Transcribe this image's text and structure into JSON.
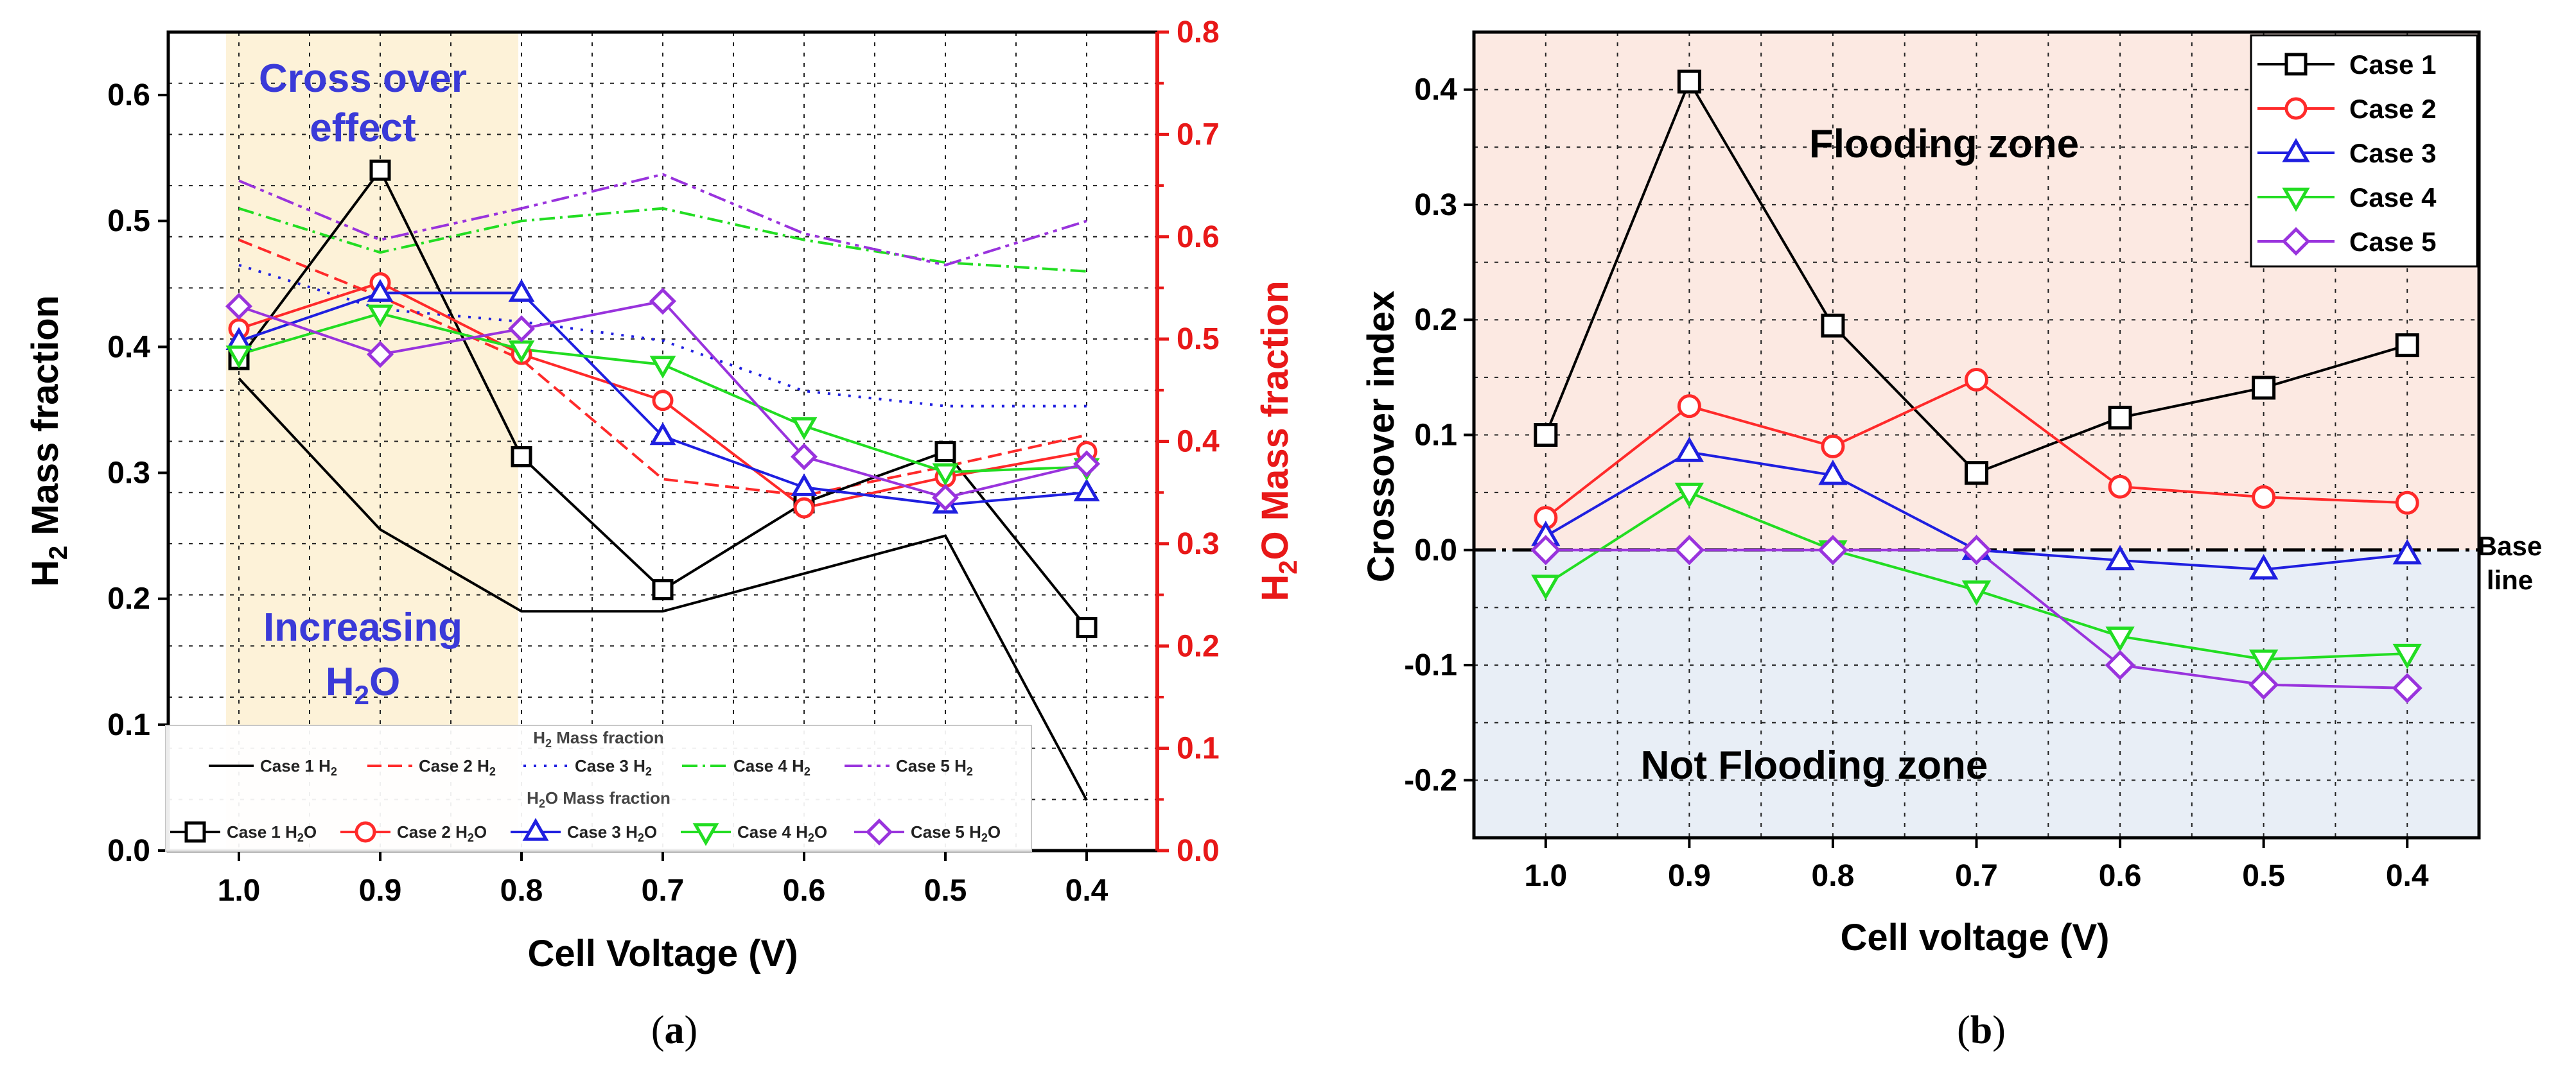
{
  "colors": {
    "case1": "#000000",
    "case2": "#ff2a2a",
    "case3": "#1f1fe0",
    "case4": "#22dd22",
    "case5": "#9933dd",
    "h2o_axis": "#e81818",
    "annotation": "#3a3ad8",
    "cross_band": "#fdf2d8",
    "flood_zone": "#fce9e2",
    "notflood_zone": "#e8eef6"
  },
  "chart_data": [
    {
      "type": "line",
      "panel": "a",
      "caption_open": "(",
      "caption_label": "a",
      "caption_close": ")",
      "xlabel": "Cell Voltage (V)",
      "ylabel_left": {
        "pre": "H",
        "sub": "2",
        "post": " Mass fraction"
      },
      "ylabel_right": {
        "pre": "H",
        "sub": "2",
        "post": "O Mass fraction"
      },
      "x": [
        1.0,
        0.9,
        0.8,
        0.7,
        0.6,
        0.5,
        0.4
      ],
      "xticks": [
        "1.0",
        "0.9",
        "0.8",
        "0.7",
        "0.6",
        "0.5",
        "0.4"
      ],
      "xlim": [
        1.05,
        0.35
      ],
      "ylim_left": [
        0,
        0.65
      ],
      "ylim_right": [
        0,
        0.8
      ],
      "yticks_left": [
        "0.0",
        "0.1",
        "0.2",
        "0.3",
        "0.4",
        "0.5",
        "0.6"
      ],
      "yticks_right": [
        "0.0",
        "0.1",
        "0.2",
        "0.3",
        "0.4",
        "0.5",
        "0.6",
        "0.7",
        "0.8"
      ],
      "annotations": [
        {
          "line1": "Cross over",
          "line2": "effect"
        },
        {
          "line1": "Increasing",
          "line2_pre": "H",
          "line2_sub": "2",
          "line2_post": "O"
        }
      ],
      "h2_series": [
        {
          "name": "Case 1 H2",
          "label_pre": "Case 1 H",
          "label_sub": "2",
          "values": [
            0.375,
            0.255,
            0.19,
            0.19,
            0.22,
            0.25,
            0.04
          ]
        },
        {
          "name": "Case 2 H2",
          "label_pre": "Case 2 H",
          "label_sub": "2",
          "values": [
            0.485,
            0.44,
            0.39,
            0.295,
            0.282,
            0.305,
            0.33
          ]
        },
        {
          "name": "Case 3 H2",
          "label_pre": "Case 3 H",
          "label_sub": "2",
          "values": [
            0.465,
            0.43,
            0.42,
            0.405,
            0.365,
            0.353,
            0.353
          ]
        },
        {
          "name": "Case 4 H2",
          "label_pre": "Case 4 H",
          "label_sub": "2",
          "values": [
            0.51,
            0.475,
            0.5,
            0.51,
            0.485,
            0.467,
            0.46
          ]
        },
        {
          "name": "Case 5 H2",
          "label_pre": "Case 5 H",
          "label_sub": "2",
          "values": [
            0.532,
            0.485,
            0.51,
            0.537,
            0.49,
            0.465,
            0.5
          ]
        }
      ],
      "h2o_series": [
        {
          "name": "Case 1 H2O",
          "label_pre": "Case 1 H",
          "label_sub": "2",
          "label_post": "O",
          "marker": "square",
          "values": [
            0.48,
            0.665,
            0.385,
            0.255,
            0.34,
            0.39,
            0.218
          ]
        },
        {
          "name": "Case 2 H2O",
          "label_pre": "Case 2 H",
          "label_sub": "2",
          "label_post": "O",
          "marker": "circle",
          "values": [
            0.51,
            0.555,
            0.485,
            0.44,
            0.335,
            0.365,
            0.39
          ]
        },
        {
          "name": "Case 3 H2O",
          "label_pre": "Case 3 H",
          "label_sub": "2",
          "label_post": "O",
          "marker": "triangle-up",
          "values": [
            0.498,
            0.545,
            0.545,
            0.405,
            0.355,
            0.338,
            0.35
          ]
        },
        {
          "name": "Case 4 H2O",
          "label_pre": "Case 4 H",
          "label_sub": "2",
          "label_post": "O",
          "marker": "triangle-down",
          "values": [
            0.485,
            0.525,
            0.49,
            0.475,
            0.415,
            0.37,
            0.375
          ]
        },
        {
          "name": "Case 5 H2O",
          "label_pre": "Case 5 H",
          "label_sub": "2",
          "label_post": "O",
          "marker": "diamond",
          "values": [
            0.532,
            0.485,
            0.51,
            0.537,
            0.385,
            0.345,
            0.378
          ]
        }
      ],
      "legend": {
        "h2_title_pre": "H",
        "h2_title_sub": "2",
        "h2_title_post": " Mass fraction",
        "h2o_title_pre": "H",
        "h2o_title_sub": "2",
        "h2o_title_post": "O Mass fraction",
        "placement": "bottom"
      }
    },
    {
      "type": "line",
      "panel": "b",
      "caption_open": "(",
      "caption_label": "b",
      "caption_close": ")",
      "xlabel": "Cell voltage (V)",
      "ylabel": "Crossover index",
      "x": [
        1.0,
        0.9,
        0.8,
        0.7,
        0.6,
        0.5,
        0.4
      ],
      "xticks": [
        "1.0",
        "0.9",
        "0.8",
        "0.7",
        "0.6",
        "0.5",
        "0.4"
      ],
      "xlim": [
        1.05,
        0.35
      ],
      "ylim": [
        -0.25,
        0.45
      ],
      "yticks": [
        "-0.2",
        "-0.1",
        "0.0",
        "0.1",
        "0.2",
        "0.3",
        "0.4"
      ],
      "zones": {
        "upper": "Flooding zone",
        "lower": "Not Flooding zone"
      },
      "baseline": {
        "line1": "Base",
        "line2": "line",
        "value": 0
      },
      "legend_placement": "top-right",
      "series": [
        {
          "name": "Case 1",
          "marker": "square",
          "values": [
            0.1,
            0.407,
            0.195,
            0.067,
            0.115,
            0.141,
            0.178
          ]
        },
        {
          "name": "Case 2",
          "marker": "circle",
          "values": [
            0.028,
            0.125,
            0.09,
            0.148,
            0.055,
            0.046,
            0.041
          ]
        },
        {
          "name": "Case 3",
          "marker": "triangle-up",
          "values": [
            0.012,
            0.085,
            0.065,
            0.0,
            -0.009,
            -0.017,
            -0.004
          ]
        },
        {
          "name": "Case 4",
          "marker": "triangle-down",
          "values": [
            -0.03,
            0.05,
            0.0,
            -0.035,
            -0.075,
            -0.095,
            -0.09
          ]
        },
        {
          "name": "Case 5",
          "marker": "diamond",
          "values": [
            0.0,
            0.0,
            0.0,
            0.0,
            -0.1,
            -0.117,
            -0.12
          ]
        }
      ]
    }
  ]
}
